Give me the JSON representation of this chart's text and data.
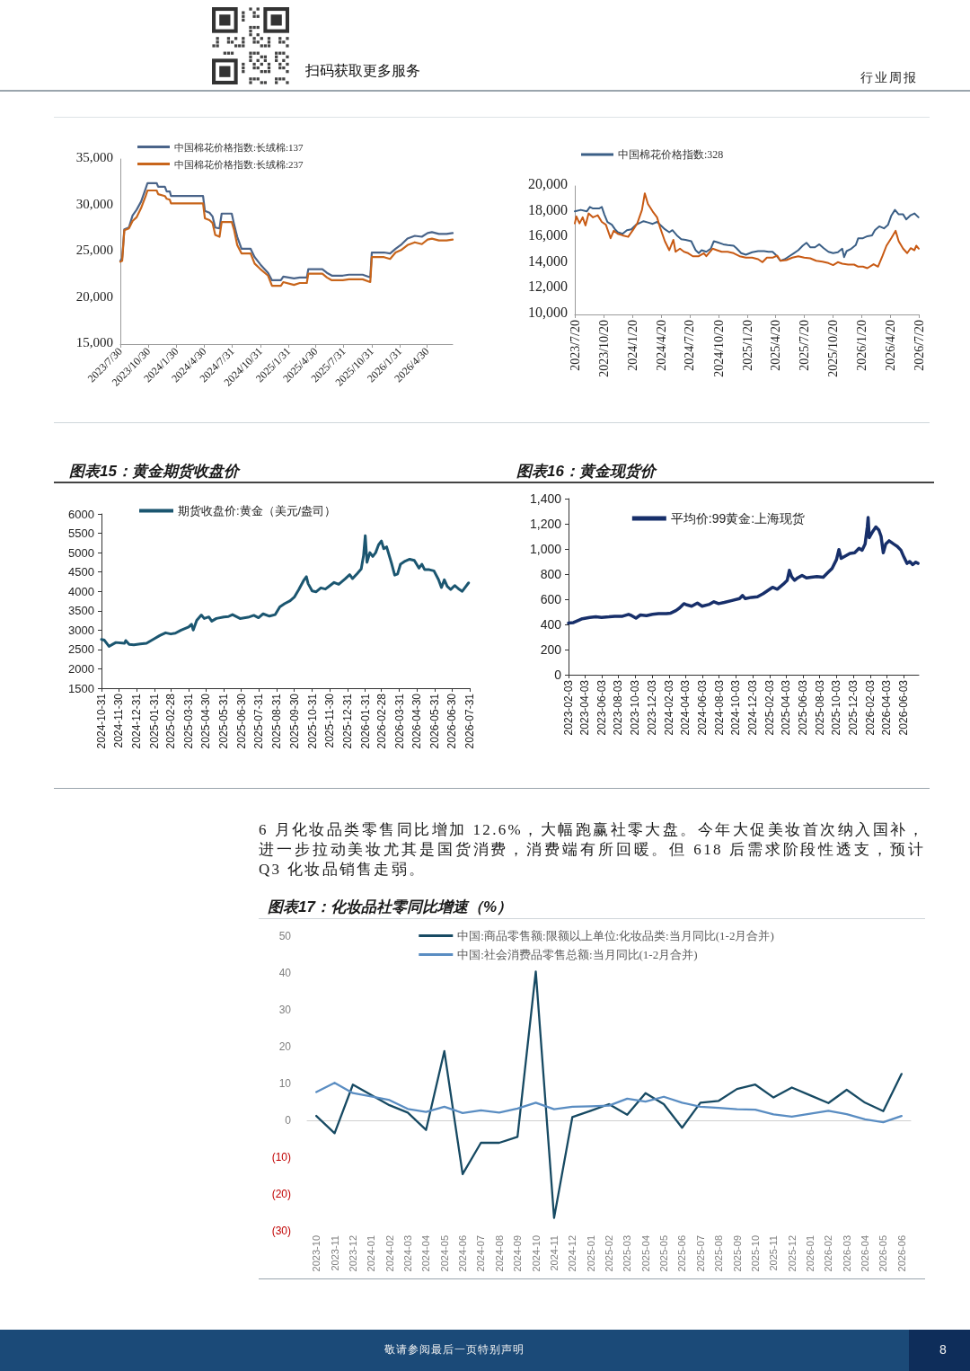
{
  "chart_data": [
    {
      "type": "other",
      "annotations": [
        "扫码获取更多服务",
        "行业周报"
      ]
    },
    {
      "type": "line",
      "legend": "top left",
      "x": [
        "2023-07-30",
        "2023-08-05",
        "2023-08-12",
        "2023-08-27",
        "2023-09-08",
        "2023-09-21",
        "2023-10-06",
        "2023-10-21",
        "2023-10-27",
        "2023-11-26",
        "2023-12-01",
        "2023-12-23",
        "2023-12-29",
        "2024-01-08",
        "2024-01-12",
        "2024-04-26",
        "2024-05-02",
        "2024-05-17",
        "2024-05-27",
        "2024-06-05",
        "2024-06-19",
        "2024-06-26",
        "2024-07-29",
        "2024-08-06",
        "2024-08-16",
        "2024-08-30",
        "2024-09-29",
        "2024-10-12",
        "2024-10-31",
        "2024-11-25",
        "2024-12-08",
        "2025-01-06",
        "2025-01-14",
        "2025-02-18",
        "2025-03-09",
        "2025-04-01",
        "2025-04-06",
        "2025-05-22",
        "2025-06-06",
        "2025-06-22",
        "2025-07-28",
        "2025-08-17",
        "2025-10-01",
        "2025-10-26",
        "2025-10-31",
        "2025-12-10",
        "2025-12-30",
        "2026-01-17",
        "2026-02-06",
        "2026-02-25",
        "2026-03-21",
        "2026-04-13",
        "2026-05-02",
        "2026-05-16",
        "2026-06-08",
        "2026-07-03",
        "2026-07-23"
      ],
      "series": [
        {
          "name": "中国棉花价格指数:长绒棉:137",
          "color": "#4a6489",
          "values": [
            24000,
            24300,
            27400,
            27600,
            28900,
            29500,
            30400,
            31800,
            32400,
            32400,
            32000,
            32000,
            31500,
            31500,
            31000,
            31000,
            29400,
            29200,
            28800,
            27600,
            27500,
            29100,
            29100,
            27900,
            26600,
            25300,
            25300,
            24400,
            23600,
            22700,
            21900,
            21900,
            22300,
            22100,
            22200,
            22200,
            23100,
            23100,
            22700,
            22400,
            22400,
            22500,
            22500,
            22200,
            24900,
            24900,
            24800,
            25300,
            25800,
            26400,
            26700,
            26600,
            27000,
            27100,
            26900,
            26900,
            27000
          ]
        },
        {
          "name": "中国棉花价格指数:长绒棉:237",
          "color": "#c8651b",
          "values": [
            23900,
            24000,
            27300,
            27500,
            28300,
            28700,
            29700,
            31000,
            31600,
            31600,
            31200,
            31000,
            30700,
            30600,
            30200,
            30200,
            28600,
            28400,
            28100,
            26800,
            26600,
            28200,
            28200,
            27300,
            25700,
            24800,
            24800,
            23700,
            23100,
            22400,
            21300,
            21300,
            21700,
            21400,
            21600,
            21600,
            22600,
            22600,
            22200,
            21900,
            21900,
            22000,
            22000,
            21700,
            24400,
            24400,
            24200,
            24900,
            25200,
            25700,
            26000,
            25800,
            26300,
            26400,
            26200,
            26200,
            26300
          ]
        }
      ],
      "xlim": [
        "2023-07-30",
        "2026-07-23"
      ],
      "xticks": [
        {
          "value": "2023-07-30",
          "label": "2023/7/30"
        },
        {
          "value": "2023-10-30",
          "label": "2023/10/30"
        },
        {
          "value": "2024-01-30",
          "label": "2024/1/30"
        },
        {
          "value": "2024-04-30",
          "label": "2024/4/30"
        },
        {
          "value": "2024-07-31",
          "label": "2024/7/31"
        },
        {
          "value": "2024-10-31",
          "label": "2024/10/31"
        },
        {
          "value": "2025-01-31",
          "label": "2025/1/31"
        },
        {
          "value": "2025-04-30",
          "label": "2025/4/30"
        },
        {
          "value": "2025-07-31",
          "label": "2025/7/31"
        },
        {
          "value": "2025-10-31",
          "label": "2025/10/31"
        },
        {
          "value": "2026-01-31",
          "label": "2026/1/31"
        },
        {
          "value": "2026-04-30",
          "label": "2026/4/30"
        }
      ],
      "ylim": [
        15000,
        35000
      ],
      "yticks": [
        {
          "value": 15000,
          "label": "15,000"
        },
        {
          "value": 20000,
          "label": "20,000"
        },
        {
          "value": 25000,
          "label": "25,000"
        },
        {
          "value": 30000,
          "label": "30,000"
        },
        {
          "value": 35000,
          "label": "35,000"
        }
      ]
    },
    {
      "type": "line",
      "legend": "top left",
      "series": [
        {
          "name": "中国棉花价格指数:328",
          "color": "#3b5f86",
          "x": [
            "2023-07-20",
            "2023-08-08",
            "2023-08-27",
            "2023-09-06",
            "2023-09-16",
            "2023-10-05",
            "2023-10-14",
            "2023-10-22",
            "2023-11-01",
            "2023-11-15",
            "2023-11-25",
            "2023-12-04",
            "2023-12-19",
            "2024-01-02",
            "2024-01-16",
            "2024-01-31",
            "2024-02-14",
            "2024-02-24",
            "2024-03-09",
            "2024-03-24",
            "2024-04-07",
            "2024-04-17",
            "2024-05-02",
            "2024-05-16",
            "2024-05-26",
            "2024-06-09",
            "2024-06-23",
            "2024-07-07",
            "2024-07-25",
            "2024-08-08",
            "2024-08-18",
            "2024-08-27",
            "2024-09-11",
            "2024-09-25",
            "2024-10-05",
            "2024-10-15",
            "2024-11-04",
            "2024-11-18",
            "2024-12-07",
            "2024-12-16",
            "2024-12-31",
            "2025-01-15",
            "2025-02-04",
            "2025-02-23",
            "2025-03-14",
            "2025-03-28",
            "2025-04-10",
            "2025-04-20",
            "2025-05-05",
            "2025-05-19",
            "2025-06-02",
            "2025-06-17",
            "2025-07-01",
            "2025-07-15",
            "2025-07-27",
            "2025-08-08",
            "2025-08-23",
            "2025-09-06",
            "2025-09-20",
            "2025-10-05",
            "2025-10-20",
            "2025-11-04",
            "2025-11-18",
            "2025-11-24",
            "2025-12-02",
            "2025-12-17",
            "2025-12-31",
            "2026-01-08",
            "2026-01-23",
            "2026-02-06",
            "2026-02-21",
            "2026-03-02",
            "2026-03-16",
            "2026-03-31",
            "2026-04-13",
            "2026-04-23",
            "2026-05-05",
            "2026-05-17",
            "2026-05-31",
            "2026-06-10",
            "2026-06-24",
            "2026-07-06",
            "2026-07-19"
          ],
          "values": [
            18020,
            18140,
            18020,
            18370,
            18250,
            18250,
            18370,
            17790,
            17200,
            16980,
            16630,
            16400,
            16280,
            16560,
            16630,
            16980,
            17140,
            17260,
            17160,
            17050,
            17200,
            16980,
            16630,
            16400,
            16560,
            16160,
            15860,
            15810,
            15700,
            15000,
            14770,
            15000,
            14880,
            15120,
            15700,
            15630,
            15460,
            15400,
            15350,
            15160,
            14770,
            14650,
            14840,
            14930,
            14930,
            14880,
            14880,
            14650,
            14180,
            14300,
            14530,
            14770,
            15000,
            15350,
            15580,
            15230,
            15230,
            15460,
            15160,
            14880,
            14770,
            14840,
            15120,
            14460,
            14930,
            15120,
            15400,
            15930,
            15930,
            16090,
            16160,
            16560,
            16860,
            16700,
            16980,
            17670,
            18140,
            17790,
            17790,
            17400,
            17720,
            17860,
            17560
          ]
        },
        {
          "color": "#c85a14",
          "x": [
            "2023-07-20",
            "2023-07-25",
            "2023-08-04",
            "2023-08-14",
            "2023-08-23",
            "2023-09-02",
            "2023-09-16",
            "2023-10-01",
            "2023-10-14",
            "2023-10-27",
            "2023-11-11",
            "2023-11-21",
            "2023-12-04",
            "2023-12-19",
            "2024-01-06",
            "2024-01-21",
            "2024-02-04",
            "2024-02-19",
            "2024-02-28",
            "2024-03-09",
            "2024-03-24",
            "2024-04-07",
            "2024-04-17",
            "2024-05-02",
            "2024-05-16",
            "2024-05-29",
            "2024-06-05",
            "2024-06-19",
            "2024-07-02",
            "2024-07-15",
            "2024-07-30",
            "2024-08-18",
            "2024-09-03",
            "2024-09-11",
            "2024-10-01",
            "2024-10-15",
            "2024-10-30",
            "2024-11-18",
            "2024-12-07",
            "2024-12-26",
            "2025-01-15",
            "2025-02-04",
            "2025-02-23",
            "2025-03-09",
            "2025-03-23",
            "2025-04-10",
            "2025-04-25",
            "2025-05-05",
            "2025-05-24",
            "2025-06-12",
            "2025-07-01",
            "2025-07-20",
            "2025-08-08",
            "2025-08-27",
            "2025-09-16",
            "2025-10-05",
            "2025-10-20",
            "2025-11-04",
            "2025-11-18",
            "2025-12-07",
            "2025-12-26",
            "2026-01-08",
            "2026-01-23",
            "2026-02-06",
            "2026-02-26",
            "2026-03-12",
            "2026-03-26",
            "2026-04-08",
            "2026-04-23",
            "2026-05-07",
            "2026-05-17",
            "2026-05-31",
            "2026-06-13",
            "2026-06-24",
            "2026-07-06",
            "2026-07-12",
            "2026-07-20"
          ],
          "values": [
            17090,
            17630,
            17090,
            17560,
            16930,
            17860,
            17560,
            17720,
            17200,
            16980,
            15930,
            16510,
            16280,
            16160,
            16040,
            16560,
            17090,
            18140,
            19420,
            18600,
            18020,
            17560,
            16740,
            15700,
            15000,
            15810,
            14880,
            15120,
            14880,
            14770,
            14530,
            14530,
            14770,
            14530,
            15120,
            15000,
            14880,
            14880,
            14770,
            14530,
            14420,
            14420,
            14300,
            14070,
            14420,
            14420,
            14580,
            14180,
            14230,
            14420,
            14530,
            14420,
            14370,
            14180,
            14110,
            14000,
            13840,
            14070,
            13950,
            13880,
            13880,
            13720,
            13720,
            13600,
            13910,
            13720,
            14530,
            15350,
            15930,
            16510,
            15700,
            15120,
            14770,
            15160,
            15000,
            15350,
            15120
          ]
        }
      ],
      "xlim": [
        "2023-07-20",
        "2026-07-20"
      ],
      "xticks": [
        {
          "value": "2023-07-20",
          "label": "2023/7/20"
        },
        {
          "value": "2023-10-20",
          "label": "2023/10/20"
        },
        {
          "value": "2024-01-20",
          "label": "2024/1/20"
        },
        {
          "value": "2024-04-20",
          "label": "2024/4/20"
        },
        {
          "value": "2024-07-20",
          "label": "2024/7/20"
        },
        {
          "value": "2024-10-20",
          "label": "2024/10/20"
        },
        {
          "value": "2025-01-20",
          "label": "2025/1/20"
        },
        {
          "value": "2025-04-20",
          "label": "2025/4/20"
        },
        {
          "value": "2025-07-20",
          "label": "2025/7/20"
        },
        {
          "value": "2025-10-20",
          "label": "2025/10/20"
        },
        {
          "value": "2026-01-20",
          "label": "2026/1/20"
        },
        {
          "value": "2026-04-20",
          "label": "2026/4/20"
        },
        {
          "value": "2026-07-20",
          "label": "2026/7/20"
        }
      ],
      "ylim": [
        10000,
        20000
      ],
      "yticks": [
        {
          "value": 10000,
          "label": "10,000"
        },
        {
          "value": 12000,
          "label": "12,000"
        },
        {
          "value": 14000,
          "label": "14,000"
        },
        {
          "value": 16000,
          "label": "16,000"
        },
        {
          "value": 18000,
          "label": "18,000"
        },
        {
          "value": 20000,
          "label": "20,000"
        }
      ]
    },
    {
      "type": "line",
      "title": "图表15：黄金期货收盘价",
      "legend": "top left",
      "x": [
        "2024-10-31",
        "2024-11-05",
        "2024-11-13",
        "2024-11-20",
        "2024-11-25",
        "2024-12-10",
        "2024-12-12",
        "2024-12-18",
        "2024-12-26",
        "2025-01-06",
        "2025-01-17",
        "2025-01-31",
        "2025-02-09",
        "2025-02-19",
        "2025-02-28",
        "2025-03-08",
        "2025-03-18",
        "2025-03-31",
        "2025-04-05",
        "2025-04-08",
        "2025-04-14",
        "2025-04-22",
        "2025-04-27",
        "2025-05-05",
        "2025-05-10",
        "2025-05-18",
        "2025-05-31",
        "2025-06-08",
        "2025-06-15",
        "2025-06-28",
        "2025-07-12",
        "2025-07-22",
        "2025-07-30",
        "2025-08-07",
        "2025-08-18",
        "2025-08-28",
        "2025-09-05",
        "2025-09-13",
        "2025-09-23",
        "2025-09-30",
        "2025-10-08",
        "2025-10-17",
        "2025-10-21",
        "2025-10-24",
        "2025-10-31",
        "2025-11-07",
        "2025-11-15",
        "2025-11-23",
        "2025-11-30",
        "2025-12-08",
        "2025-12-16",
        "2025-12-27",
        "2026-01-04",
        "2026-01-09",
        "2026-01-17",
        "2026-01-24",
        "2026-01-28",
        "2026-01-31",
        "2026-02-03",
        "2026-02-08",
        "2026-02-13",
        "2026-02-18",
        "2026-02-23",
        "2026-02-28",
        "2026-03-04",
        "2026-03-09",
        "2026-03-18",
        "2026-03-23",
        "2026-03-28",
        "2026-04-02",
        "2026-04-10",
        "2026-04-18",
        "2026-04-26",
        "2026-05-04",
        "2026-05-09",
        "2026-05-14",
        "2026-05-22",
        "2026-05-30",
        "2026-06-07",
        "2026-06-12",
        "2026-06-17",
        "2026-06-22",
        "2026-06-28",
        "2026-07-05",
        "2026-07-13",
        "2026-07-18",
        "2026-07-23",
        "2026-07-29"
      ],
      "series": [
        {
          "name": "期货收盘价:黄金（美元/盎司）",
          "color": "#1b5670",
          "values": [
            2760,
            2740,
            2580,
            2640,
            2680,
            2660,
            2730,
            2630,
            2620,
            2640,
            2660,
            2780,
            2860,
            2930,
            2900,
            2920,
            3000,
            3080,
            3150,
            3000,
            3250,
            3390,
            3300,
            3340,
            3230,
            3300,
            3340,
            3350,
            3400,
            3300,
            3330,
            3380,
            3320,
            3420,
            3360,
            3400,
            3600,
            3680,
            3760,
            3850,
            4050,
            4300,
            4380,
            4200,
            4010,
            3990,
            4090,
            4060,
            4140,
            4230,
            4180,
            4320,
            4430,
            4330,
            4460,
            4580,
            4920,
            5440,
            4750,
            5000,
            4900,
            5000,
            5200,
            5300,
            5100,
            5150,
            4700,
            4420,
            4450,
            4700,
            4780,
            4830,
            4800,
            4600,
            4700,
            4560,
            4560,
            4530,
            4300,
            4100,
            4300,
            4130,
            4050,
            4150,
            4050,
            4000,
            4100,
            4220
          ]
        }
      ],
      "xlim": [
        "2024-10-31",
        "2026-07-31"
      ],
      "xticks": [
        "2024-10-31",
        "2024-11-30",
        "2024-12-31",
        "2025-01-31",
        "2025-02-28",
        "2025-03-31",
        "2025-04-30",
        "2025-05-31",
        "2025-06-30",
        "2025-07-31",
        "2025-08-31",
        "2025-09-30",
        "2025-10-31",
        "2025-11-30",
        "2025-12-31",
        "2026-01-31",
        "2026-02-28",
        "2026-03-31",
        "2026-04-30",
        "2026-05-31",
        "2026-06-30",
        "2026-07-31"
      ],
      "ylim": [
        1500,
        6000
      ],
      "yticks": [
        1500,
        2000,
        2500,
        3000,
        3500,
        4000,
        4500,
        5000,
        5500,
        6000
      ]
    },
    {
      "type": "line",
      "title": "图表16：黄金现货价",
      "legend": "top",
      "x": [
        "2023-02-03",
        "2023-02-21",
        "2023-03-14",
        "2023-03-25",
        "2023-04-21",
        "2023-05-13",
        "2023-06-03",
        "2023-06-30",
        "2023-07-21",
        "2023-08-18",
        "2023-09-09",
        "2023-09-20",
        "2023-10-06",
        "2023-10-22",
        "2023-11-13",
        "2023-12-05",
        "2023-12-27",
        "2024-01-24",
        "2024-02-09",
        "2024-02-28",
        "2024-03-12",
        "2024-03-28",
        "2024-04-08",
        "2024-04-25",
        "2024-05-16",
        "2024-06-02",
        "2024-06-29",
        "2024-07-15",
        "2024-08-01",
        "2024-08-22",
        "2024-09-19",
        "2024-10-16",
        "2024-10-27",
        "2024-11-06",
        "2024-11-28",
        "2024-12-20",
        "2025-01-10",
        "2025-02-03",
        "2025-02-13",
        "2025-03-02",
        "2025-03-24",
        "2025-04-07",
        "2025-04-15",
        "2025-04-23",
        "2025-05-04",
        "2025-05-15",
        "2025-05-31",
        "2025-06-16",
        "2025-07-03",
        "2025-07-24",
        "2025-08-16",
        "2025-09-01",
        "2025-09-17",
        "2025-10-03",
        "2025-10-12",
        "2025-10-20",
        "2025-11-05",
        "2025-11-21",
        "2025-12-08",
        "2025-12-24",
        "2026-01-04",
        "2026-01-15",
        "2026-01-23",
        "2026-01-26",
        "2026-01-30",
        "2026-02-12",
        "2026-02-23",
        "2026-03-06",
        "2026-03-14",
        "2026-03-22",
        "2026-03-31",
        "2026-04-12",
        "2026-04-28",
        "2026-05-12",
        "2026-05-25",
        "2026-06-05",
        "2026-06-16",
        "2026-06-26",
        "2026-07-07",
        "2026-07-18",
        "2026-07-26"
      ],
      "series": [
        {
          "name": "平均价:99黄金:上海现货",
          "color": "#172f6a",
          "values": [
            410,
            415,
            435,
            445,
            455,
            460,
            455,
            460,
            465,
            465,
            480,
            470,
            450,
            475,
            470,
            480,
            485,
            485,
            490,
            510,
            530,
            565,
            555,
            545,
            570,
            545,
            560,
            580,
            565,
            575,
            590,
            605,
            630,
            605,
            615,
            620,
            645,
            680,
            695,
            680,
            720,
            750,
            830,
            780,
            750,
            770,
            790,
            770,
            775,
            780,
            775,
            810,
            845,
            915,
            995,
            925,
            945,
            965,
            970,
            1005,
            990,
            1040,
            1175,
            1250,
            1090,
            1140,
            1175,
            1150,
            1100,
            970,
            1040,
            1065,
            1040,
            1020,
            990,
            935,
            885,
            900,
            875,
            895,
            885
          ]
        }
      ],
      "xlim": [
        "2023-02-03",
        "2026-07-29"
      ],
      "xticks": [
        "2023-02-03",
        "2023-04-03",
        "2023-06-03",
        "2023-08-03",
        "2023-10-03",
        "2023-12-03",
        "2024-02-03",
        "2024-04-03",
        "2024-06-03",
        "2024-08-03",
        "2024-10-03",
        "2024-12-03",
        "2025-02-03",
        "2025-04-03",
        "2025-06-03",
        "2025-08-03",
        "2025-10-03",
        "2025-12-03",
        "2026-02-03",
        "2026-04-03",
        "2026-06-03"
      ],
      "ylim": [
        0,
        1400
      ],
      "yticks": [
        0,
        200,
        400,
        600,
        800,
        {
          "value": 1000,
          "label": "1,000"
        },
        {
          "value": 1200,
          "label": "1,200"
        },
        {
          "value": 1400,
          "label": "1,400"
        }
      ]
    },
    {
      "type": "other",
      "annotations": [
        "6 月化妆品类零售同比增加 12.6%，大幅跑赢社零大盘。今年大促美妆首次纳入国补，进一步拉动美妆尤其是国货消费，消费端有所回暖。但 618 后需求阶段性透支，预计 Q3 化妆品销售走弱。"
      ]
    },
    {
      "type": "line",
      "title": "图表17：化妆品社零同比增速（%）",
      "legend": "top",
      "categories": [
        "2023-10",
        "2023-11",
        "2023-12",
        "2024-01",
        "2024-02",
        "2024-03",
        "2024-04",
        "2024-05",
        "2024-06",
        "2024-07",
        "2024-08",
        "2024-09",
        "2024-10",
        "2024-11",
        "2024-12",
        "2025-01",
        "2025-02",
        "2025-03",
        "2025-04",
        "2025-05",
        "2025-06",
        "2025-07",
        "2025-08",
        "2025-09",
        "2025-10",
        "2025-11",
        "2025-12",
        "2026-01",
        "2026-02",
        "2026-03",
        "2026-04",
        "2026-05",
        "2026-06"
      ],
      "series": [
        {
          "name": "中国:商品零售额:限额以上单位:化妆品类:当月同比(1-2月合并)",
          "color": "#174a63",
          "values": [
            1.2,
            -3.5,
            9.7,
            6.9,
            4.1,
            2.1,
            -2.6,
            18.8,
            -14.6,
            -6.1,
            -6.1,
            -4.5,
            40.4,
            -26.5,
            0.9,
            2.6,
            4.4,
            1.5,
            7.4,
            4.4,
            -2.0,
            4.8,
            5.3,
            8.5,
            9.7,
            6.2,
            8.9,
            6.8,
            4.7,
            8.3,
            4.8,
            2.5,
            12.6
          ]
        },
        {
          "name": "中国:社会消费品零售总额:当月同比(1-2月合并)",
          "color": "#5a8dc2",
          "values": [
            7.7,
            10.2,
            7.4,
            6.5,
            5.5,
            3.1,
            2.3,
            3.7,
            2.0,
            2.7,
            2.1,
            3.2,
            4.8,
            3.0,
            3.7,
            3.8,
            4.0,
            5.9,
            5.1,
            6.4,
            4.8,
            3.7,
            3.4,
            3.0,
            2.9,
            1.6,
            1.0,
            1.8,
            2.6,
            1.7,
            0.3,
            -0.5,
            1.2
          ]
        }
      ],
      "ylim": [
        -30,
        50
      ],
      "yticks": [
        {
          "value": -30,
          "label": "(30)"
        },
        {
          "value": -20,
          "label": "(20)"
        },
        {
          "value": -10,
          "label": "(10)"
        },
        0,
        10,
        20,
        30,
        40,
        50
      ]
    },
    {
      "type": "other",
      "annotations": [
        "敬请参阅最后一页特别声明",
        "8"
      ]
    }
  ]
}
